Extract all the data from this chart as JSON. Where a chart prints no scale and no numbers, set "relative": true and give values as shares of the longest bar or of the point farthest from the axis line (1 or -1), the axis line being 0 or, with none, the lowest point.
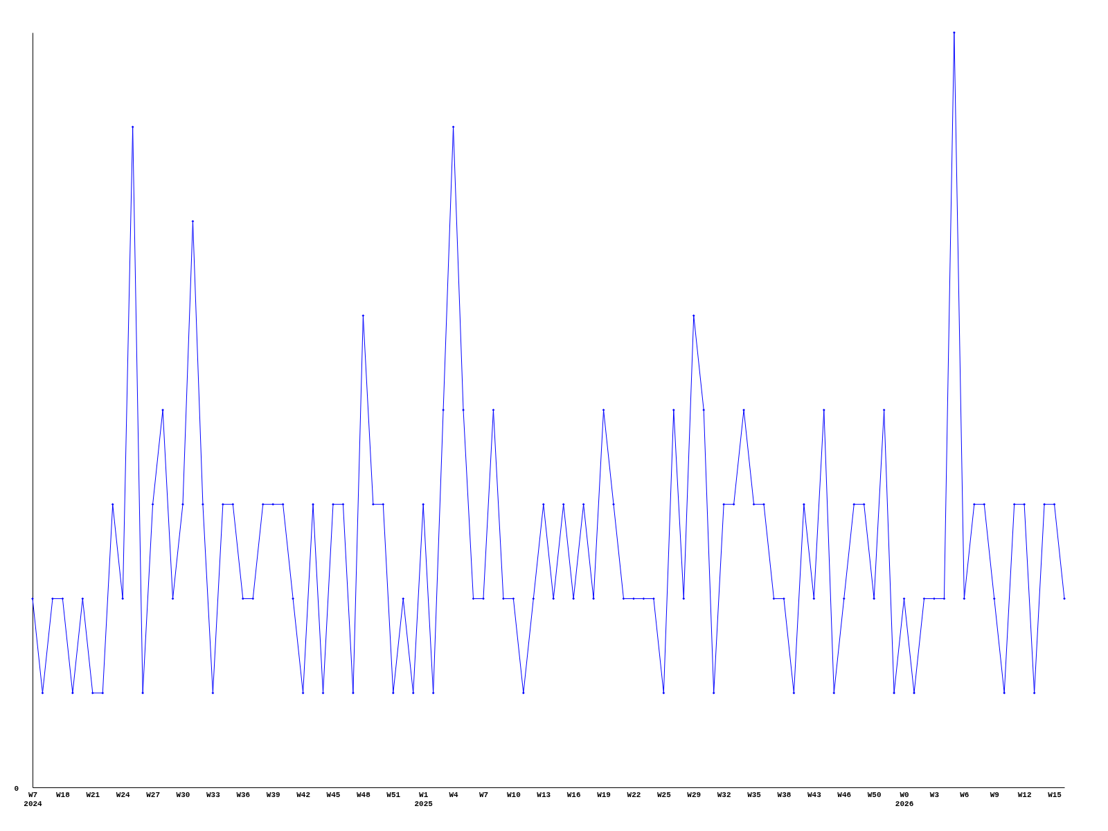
{
  "chart_data": {
    "type": "line",
    "relative": true,
    "annotations": [
      "0"
    ],
    "marker": "diamond",
    "line_style": "solid",
    "grid": false,
    "categories": [
      "W7\n2024",
      null,
      null,
      "W18",
      null,
      null,
      "W21",
      null,
      null,
      "W24",
      null,
      null,
      "W27",
      null,
      null,
      "W30",
      null,
      null,
      "W33",
      null,
      null,
      "W36",
      null,
      null,
      "W39",
      null,
      null,
      "W42",
      null,
      null,
      "W45",
      null,
      null,
      "W48",
      null,
      null,
      "W51",
      null,
      null,
      "W1\n2025",
      null,
      null,
      "W4",
      null,
      null,
      "W7",
      null,
      null,
      "W10",
      null,
      null,
      "W13",
      null,
      null,
      "W16",
      null,
      null,
      "W19",
      null,
      null,
      "W22",
      null,
      null,
      "W25",
      null,
      null,
      "W29",
      null,
      null,
      "W32",
      null,
      null,
      "W35",
      null,
      null,
      "W38",
      null,
      null,
      "W43",
      null,
      null,
      "W46",
      null,
      null,
      "W50",
      null,
      null,
      "W0\n2026",
      null,
      null,
      "W3",
      null,
      null,
      "W6",
      null,
      null,
      "W9",
      null,
      null,
      "W12",
      null,
      null,
      "W15",
      null
    ],
    "series": [
      {
        "color": "#0000ff",
        "values": [
          0.25,
          0.125,
          0.25,
          0.25,
          0.125,
          0.25,
          0.125,
          0.125,
          0.375,
          0.25,
          0.875,
          0.125,
          0.375,
          0.5,
          0.25,
          0.375,
          0.75,
          0.375,
          0.125,
          0.375,
          0.375,
          0.25,
          0.25,
          0.375,
          0.375,
          0.375,
          0.25,
          0.125,
          0.375,
          0.125,
          0.375,
          0.375,
          0.125,
          0.625,
          0.375,
          0.375,
          0.125,
          0.25,
          0.125,
          0.375,
          0.125,
          0.5,
          0.875,
          0.5,
          0.25,
          0.25,
          0.5,
          0.25,
          0.25,
          0.125,
          0.25,
          0.375,
          0.25,
          0.375,
          0.25,
          0.375,
          0.25,
          0.5,
          0.375,
          0.25,
          0.25,
          0.25,
          0.25,
          0.125,
          0.5,
          0.25,
          0.625,
          0.5,
          0.125,
          0.375,
          0.375,
          0.5,
          0.375,
          0.375,
          0.25,
          0.25,
          0.125,
          0.375,
          0.25,
          0.5,
          0.125,
          0.25,
          0.375,
          0.375,
          0.25,
          0.5,
          0.125,
          0.25,
          0.125,
          0.25,
          0.25,
          0.25,
          1,
          0.25,
          0.375,
          0.375,
          0.25,
          0.125,
          0.375,
          0.375,
          0.125,
          0.375,
          0.375,
          0.25
        ]
      }
    ]
  }
}
